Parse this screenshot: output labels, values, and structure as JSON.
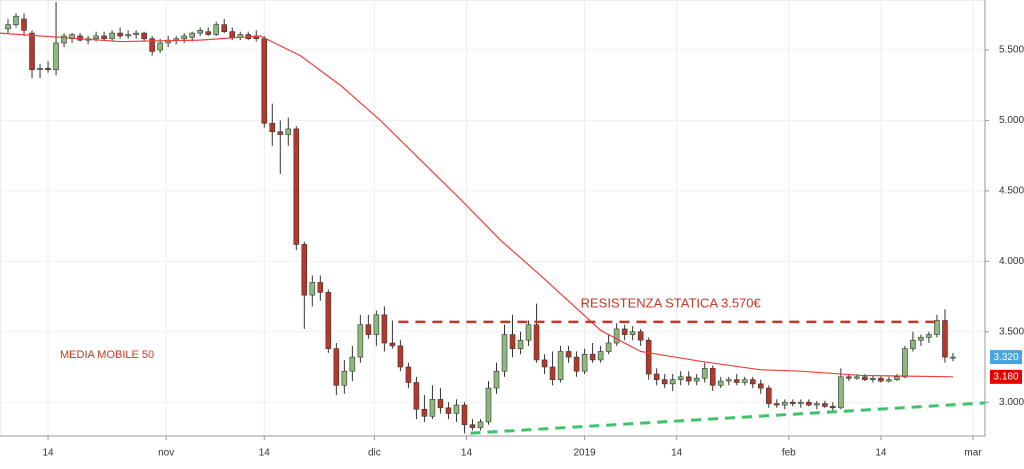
{
  "chart_data": {
    "type": "candlestick",
    "xlim": [
      -1,
      122
    ],
    "ylim": [
      2.76,
      5.855
    ],
    "xticks": [
      {
        "value": 5,
        "label": "14"
      },
      {
        "value": 19.75,
        "label": "nov"
      },
      {
        "value": 32,
        "label": "14"
      },
      {
        "value": 45.75,
        "label": "dic"
      },
      {
        "value": 57.25,
        "label": "14"
      },
      {
        "value": 72,
        "label": "2019"
      },
      {
        "value": 83.5,
        "label": "14"
      },
      {
        "value": 97.5,
        "label": "feb"
      },
      {
        "value": 109,
        "label": "14"
      },
      {
        "value": 120.5,
        "label": "mar"
      }
    ],
    "yticks": [
      {
        "value": 3,
        "label": "3.000"
      },
      {
        "value": 3.5,
        "label": "3.500"
      },
      {
        "value": 4,
        "label": "4.000"
      },
      {
        "value": 4.5,
        "label": "4.500"
      },
      {
        "value": 5,
        "label": "5.000"
      },
      {
        "value": 5.5,
        "label": "5.500"
      }
    ],
    "grid": true,
    "up_color": "#8dba7c",
    "down_color": "#b5392b",
    "candles": [
      [
        5.65,
        5.72,
        5.62,
        5.68
      ],
      [
        5.68,
        5.76,
        5.66,
        5.74
      ],
      [
        5.72,
        5.76,
        5.6,
        5.64
      ],
      [
        5.62,
        5.64,
        5.3,
        5.36
      ],
      [
        5.36,
        5.4,
        5.3,
        5.37
      ],
      [
        5.37,
        5.42,
        5.34,
        5.36
      ],
      [
        5.36,
        5.84,
        5.32,
        5.55
      ],
      [
        5.55,
        5.62,
        5.52,
        5.6
      ],
      [
        5.58,
        5.62,
        5.55,
        5.61
      ],
      [
        5.6,
        5.62,
        5.56,
        5.57
      ],
      [
        5.57,
        5.6,
        5.54,
        5.58
      ],
      [
        5.58,
        5.63,
        5.56,
        5.6
      ],
      [
        5.6,
        5.63,
        5.57,
        5.58
      ],
      [
        5.58,
        5.64,
        5.56,
        5.62
      ],
      [
        5.62,
        5.66,
        5.58,
        5.6
      ],
      [
        5.6,
        5.64,
        5.58,
        5.61
      ],
      [
        5.61,
        5.64,
        5.58,
        5.62
      ],
      [
        5.62,
        5.63,
        5.56,
        5.58
      ],
      [
        5.58,
        5.6,
        5.46,
        5.49
      ],
      [
        5.5,
        5.58,
        5.48,
        5.55
      ],
      [
        5.55,
        5.6,
        5.52,
        5.57
      ],
      [
        5.57,
        5.6,
        5.54,
        5.58
      ],
      [
        5.58,
        5.62,
        5.55,
        5.6
      ],
      [
        5.59,
        5.63,
        5.56,
        5.62
      ],
      [
        5.62,
        5.66,
        5.6,
        5.64
      ],
      [
        5.63,
        5.66,
        5.6,
        5.61
      ],
      [
        5.61,
        5.7,
        5.6,
        5.68
      ],
      [
        5.68,
        5.72,
        5.62,
        5.63
      ],
      [
        5.63,
        5.66,
        5.57,
        5.59
      ],
      [
        5.59,
        5.63,
        5.57,
        5.61
      ],
      [
        5.61,
        5.63,
        5.57,
        5.58
      ],
      [
        5.6,
        5.64,
        5.56,
        5.58
      ],
      [
        5.58,
        5.6,
        4.95,
        4.98
      ],
      [
        4.98,
        5.12,
        4.82,
        4.92
      ],
      [
        4.92,
        5.0,
        4.62,
        4.9
      ],
      [
        4.9,
        5.02,
        4.82,
        4.94
      ],
      [
        4.94,
        4.96,
        4.08,
        4.12
      ],
      [
        4.12,
        4.14,
        3.52,
        3.76
      ],
      [
        3.76,
        3.9,
        3.68,
        3.85
      ],
      [
        3.85,
        3.9,
        3.72,
        3.78
      ],
      [
        3.78,
        3.8,
        3.35,
        3.38
      ],
      [
        3.38,
        3.42,
        3.05,
        3.12
      ],
      [
        3.12,
        3.3,
        3.06,
        3.22
      ],
      [
        3.22,
        3.4,
        3.15,
        3.32
      ],
      [
        3.32,
        3.62,
        3.28,
        3.55
      ],
      [
        3.55,
        3.62,
        3.45,
        3.48
      ],
      [
        3.48,
        3.65,
        3.4,
        3.62
      ],
      [
        3.62,
        3.68,
        3.36,
        3.42
      ],
      [
        3.42,
        3.58,
        3.38,
        3.4
      ],
      [
        3.4,
        3.44,
        3.22,
        3.25
      ],
      [
        3.25,
        3.28,
        3.1,
        3.14
      ],
      [
        3.14,
        3.18,
        2.88,
        2.95
      ],
      [
        2.95,
        3.05,
        2.86,
        2.9
      ],
      [
        2.9,
        3.12,
        2.88,
        3.02
      ],
      [
        3.02,
        3.1,
        2.92,
        2.96
      ],
      [
        2.96,
        3.0,
        2.88,
        2.92
      ],
      [
        2.92,
        3.02,
        2.86,
        2.98
      ],
      [
        2.98,
        3.0,
        2.78,
        2.84
      ],
      [
        2.84,
        2.88,
        2.8,
        2.82
      ],
      [
        2.82,
        2.88,
        2.8,
        2.86
      ],
      [
        2.86,
        3.15,
        2.84,
        3.1
      ],
      [
        3.1,
        3.28,
        3.06,
        3.22
      ],
      [
        3.22,
        3.55,
        3.18,
        3.48
      ],
      [
        3.48,
        3.62,
        3.32,
        3.38
      ],
      [
        3.38,
        3.5,
        3.34,
        3.44
      ],
      [
        3.44,
        3.58,
        3.4,
        3.55
      ],
      [
        3.55,
        3.7,
        3.28,
        3.3
      ],
      [
        3.3,
        3.34,
        3.2,
        3.25
      ],
      [
        3.25,
        3.36,
        3.12,
        3.16
      ],
      [
        3.16,
        3.4,
        3.14,
        3.36
      ],
      [
        3.36,
        3.4,
        3.28,
        3.32
      ],
      [
        3.32,
        3.36,
        3.18,
        3.22
      ],
      [
        3.22,
        3.38,
        3.2,
        3.34
      ],
      [
        3.34,
        3.42,
        3.28,
        3.3
      ],
      [
        3.3,
        3.4,
        3.28,
        3.36
      ],
      [
        3.36,
        3.48,
        3.34,
        3.42
      ],
      [
        3.42,
        3.56,
        3.4,
        3.52
      ],
      [
        3.52,
        3.55,
        3.44,
        3.48
      ],
      [
        3.48,
        3.54,
        3.44,
        3.5
      ],
      [
        3.5,
        3.52,
        3.4,
        3.44
      ],
      [
        3.44,
        3.46,
        3.16,
        3.2
      ],
      [
        3.2,
        3.24,
        3.12,
        3.16
      ],
      [
        3.16,
        3.2,
        3.1,
        3.13
      ],
      [
        3.13,
        3.2,
        3.08,
        3.16
      ],
      [
        3.16,
        3.22,
        3.12,
        3.18
      ],
      [
        3.18,
        3.22,
        3.12,
        3.15
      ],
      [
        3.15,
        3.2,
        3.12,
        3.17
      ],
      [
        3.17,
        3.28,
        3.14,
        3.24
      ],
      [
        3.24,
        3.26,
        3.08,
        3.12
      ],
      [
        3.12,
        3.18,
        3.1,
        3.15
      ],
      [
        3.15,
        3.18,
        3.12,
        3.16
      ],
      [
        3.16,
        3.2,
        3.12,
        3.14
      ],
      [
        3.14,
        3.18,
        3.12,
        3.16
      ],
      [
        3.16,
        3.18,
        3.1,
        3.13
      ],
      [
        3.13,
        3.16,
        3.06,
        3.1
      ],
      [
        3.1,
        3.12,
        2.96,
        2.99
      ],
      [
        2.99,
        3.02,
        2.96,
        2.98
      ],
      [
        2.98,
        3.02,
        2.95,
        3.0
      ],
      [
        3.0,
        3.02,
        2.97,
        2.99
      ],
      [
        2.99,
        3.02,
        2.96,
        3.0
      ],
      [
        3.0,
        3.02,
        2.97,
        2.98
      ],
      [
        2.98,
        3.01,
        2.95,
        2.99
      ],
      [
        2.99,
        3.01,
        2.96,
        2.97
      ],
      [
        2.97,
        3.0,
        2.94,
        2.96
      ],
      [
        2.96,
        3.24,
        2.95,
        3.18
      ],
      [
        3.18,
        3.2,
        3.15,
        3.17
      ],
      [
        3.17,
        3.2,
        3.16,
        3.18
      ],
      [
        3.18,
        3.2,
        3.15,
        3.16
      ],
      [
        3.16,
        3.19,
        3.14,
        3.17
      ],
      [
        3.17,
        3.19,
        3.14,
        3.15
      ],
      [
        3.15,
        3.18,
        3.14,
        3.16
      ],
      [
        3.16,
        3.2,
        3.15,
        3.18
      ],
      [
        3.18,
        3.4,
        3.17,
        3.38
      ],
      [
        3.38,
        3.5,
        3.36,
        3.44
      ],
      [
        3.44,
        3.48,
        3.4,
        3.46
      ],
      [
        3.46,
        3.5,
        3.42,
        3.48
      ],
      [
        3.48,
        3.62,
        3.46,
        3.58
      ],
      [
        3.58,
        3.66,
        3.28,
        3.32
      ],
      [
        3.32,
        3.35,
        3.29,
        3.32
      ]
    ],
    "ma": {
      "color": "#e8413a",
      "x": [
        -1,
        14,
        24,
        31.5,
        36.5,
        41.5,
        46.5,
        51.5,
        56.5,
        61.5,
        66.5,
        71.5,
        74,
        79,
        86.5,
        94,
        99,
        106.5,
        118
      ],
      "values": [
        5.62,
        5.56,
        5.57,
        5.6,
        5.46,
        5.25,
        5.0,
        4.72,
        4.44,
        4.15,
        3.9,
        3.64,
        3.51,
        3.36,
        3.29,
        3.23,
        3.22,
        3.19,
        3.18
      ]
    },
    "ma_label": "MEDIA MOBILE 50",
    "resistance": {
      "value": 3.57,
      "x": [
        48.75,
        116.75
      ],
      "color": "#c0392b",
      "label": "RESISTENZA STATICA 3.570€"
    },
    "support": {
      "x": [
        57.75,
        122
      ],
      "values": [
        2.78,
        2.995
      ],
      "color": "#3cc46a"
    },
    "last_price": {
      "value": 3.32,
      "label": "3.320",
      "color": "#4aa3df"
    },
    "ma_last": {
      "value": 3.18,
      "label": "3.180",
      "color": "#e50000"
    }
  }
}
